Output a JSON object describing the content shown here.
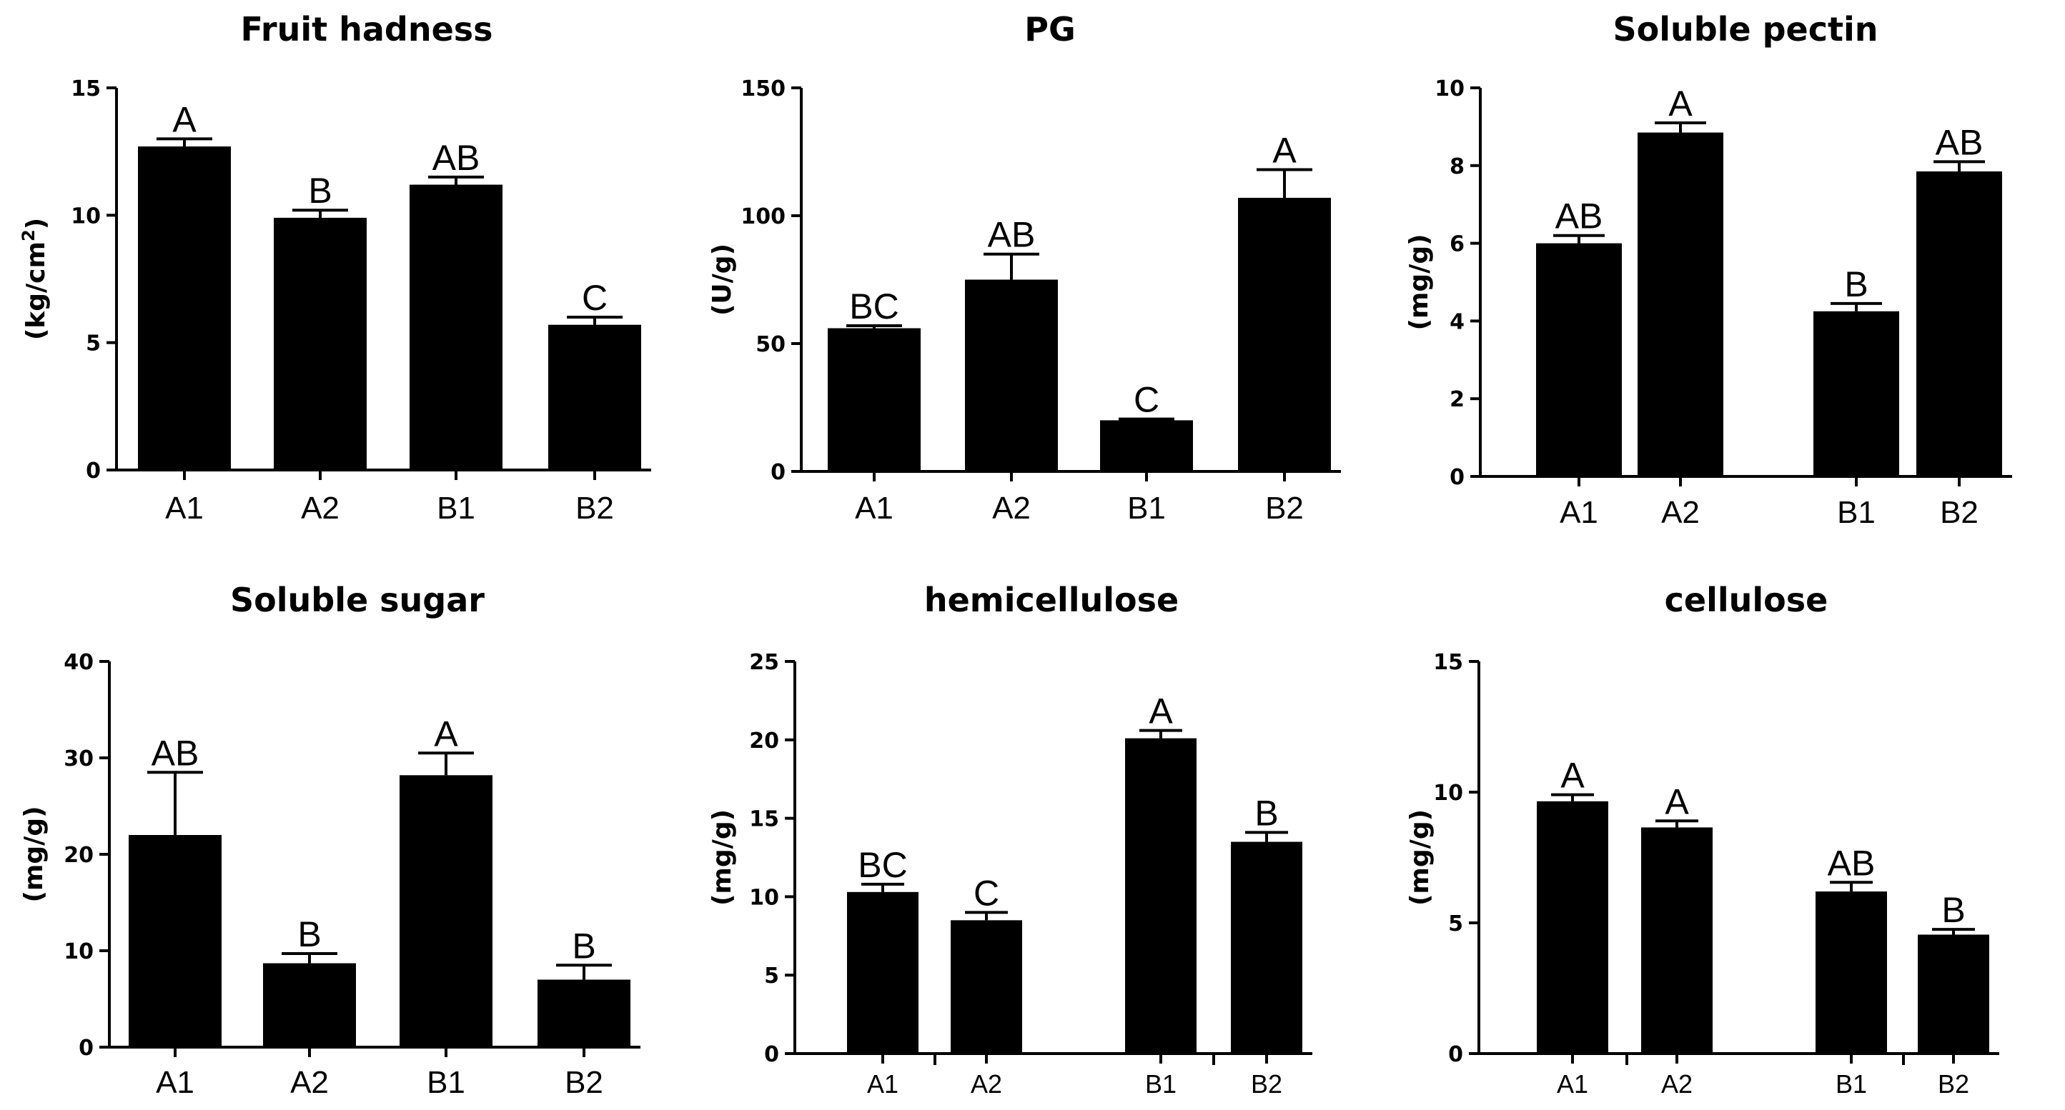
{
  "chart_data": [
    {
      "type": "bar",
      "title": "Fruit hadness",
      "ylabel": "(kg/cm",
      "ylabel_sup": "2",
      "ylabel_close": ")",
      "ylim": [
        0,
        15
      ],
      "yticks": [
        0,
        5,
        10,
        15
      ],
      "categories": [
        "A1",
        "A2",
        "B1",
        "B2"
      ],
      "values": [
        12.7,
        9.9,
        11.2,
        5.7
      ],
      "errors": [
        0.3,
        0.3,
        0.3,
        0.3
      ],
      "significance": [
        "A",
        "B",
        "AB",
        "C"
      ]
    },
    {
      "type": "bar",
      "title": "PG",
      "ylabel": "(U/g)",
      "ylim": [
        0,
        150
      ],
      "yticks": [
        0,
        50,
        100,
        150
      ],
      "categories": [
        "A1",
        "A2",
        "B1",
        "B2"
      ],
      "values": [
        56,
        75,
        20,
        107
      ],
      "errors": [
        1,
        10,
        0.5,
        11
      ],
      "significance": [
        "BC",
        "AB",
        "C",
        "A"
      ]
    },
    {
      "type": "bar",
      "title": "Soluble pectin",
      "ylabel": "(mg/g)",
      "ylim": [
        0,
        10
      ],
      "yticks": [
        0,
        2,
        4,
        6,
        8,
        10
      ],
      "categories": [
        "A1",
        "A2",
        "B1",
        "B2"
      ],
      "values": [
        6.0,
        8.85,
        4.25,
        7.85
      ],
      "errors": [
        0.2,
        0.25,
        0.2,
        0.25
      ],
      "significance": [
        "AB",
        "A",
        "B",
        "AB"
      ]
    },
    {
      "type": "bar",
      "title": "Soluble sugar",
      "ylabel": "(mg/g)",
      "ylim": [
        0,
        40
      ],
      "yticks": [
        0,
        10,
        20,
        30,
        40
      ],
      "categories": [
        "A1",
        "A2",
        "B1",
        "B2"
      ],
      "values": [
        22,
        8.7,
        28.2,
        7.0
      ],
      "errors": [
        6.5,
        1.0,
        2.3,
        1.5
      ],
      "significance": [
        "AB",
        "B",
        "A",
        "B"
      ]
    },
    {
      "type": "bar",
      "title": "hemicellulose",
      "ylabel": "(mg/g)",
      "ylim": [
        0,
        25
      ],
      "yticks": [
        0,
        5,
        10,
        15,
        20,
        25
      ],
      "categories": [
        "A1",
        "A2",
        "B1",
        "B2"
      ],
      "values": [
        10.3,
        8.5,
        20.1,
        13.5
      ],
      "errors": [
        0.5,
        0.5,
        0.5,
        0.6
      ],
      "significance": [
        "BC",
        "C",
        "A",
        "B"
      ]
    },
    {
      "type": "bar",
      "title": "cellulose",
      "ylabel": "(mg/g)",
      "ylim": [
        0,
        15
      ],
      "yticks": [
        0,
        5,
        10,
        15
      ],
      "categories": [
        "A1",
        "A2",
        "B1",
        "B2"
      ],
      "values": [
        9.65,
        8.65,
        6.2,
        4.55
      ],
      "errors": [
        0.25,
        0.25,
        0.35,
        0.2
      ],
      "significance": [
        "A",
        "A",
        "AB",
        "B"
      ]
    }
  ]
}
